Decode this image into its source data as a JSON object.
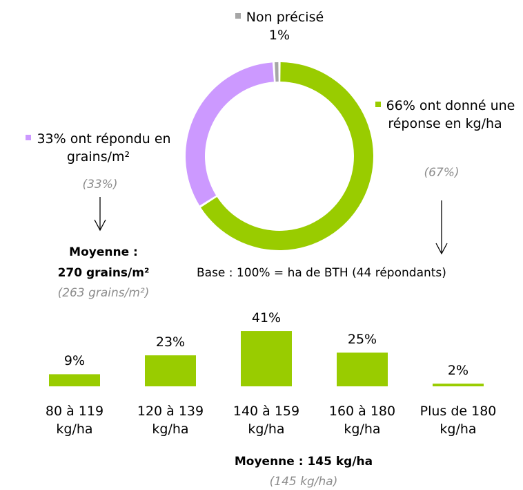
{
  "chart_data": [
    {
      "type": "pie",
      "categories": [
        "Non précisé",
        "ont donné une réponse en kg/ha",
        "ont répondu en grains/m²"
      ],
      "values": [
        1,
        66,
        33
      ],
      "value_labels": [
        "1%",
        "66%",
        "33%"
      ],
      "colors": [
        "#a6a6a6",
        "#99cc00",
        "#cc99ff"
      ]
    },
    {
      "type": "bar",
      "categories": [
        "80 à 119 kg/ha",
        "120 à 139 kg/ha",
        "140 à 159 kg/ha",
        "160 à 180 kg/ha",
        "Plus de 180 kg/ha"
      ],
      "values": [
        9,
        23,
        41,
        25,
        2
      ],
      "value_labels": [
        "9%",
        "23%",
        "41%",
        "25%",
        "2%"
      ],
      "color": "#99cc00"
    }
  ],
  "annotations": [
    "(67%)",
    "(33%)",
    "Moyenne :",
    "270 grains/m²",
    "(263 grains/m²)",
    "Base : 100% = ha de BTH (44 répondants)",
    "Moyenne : 145 kg/ha",
    "(145 kg/ha)"
  ]
}
